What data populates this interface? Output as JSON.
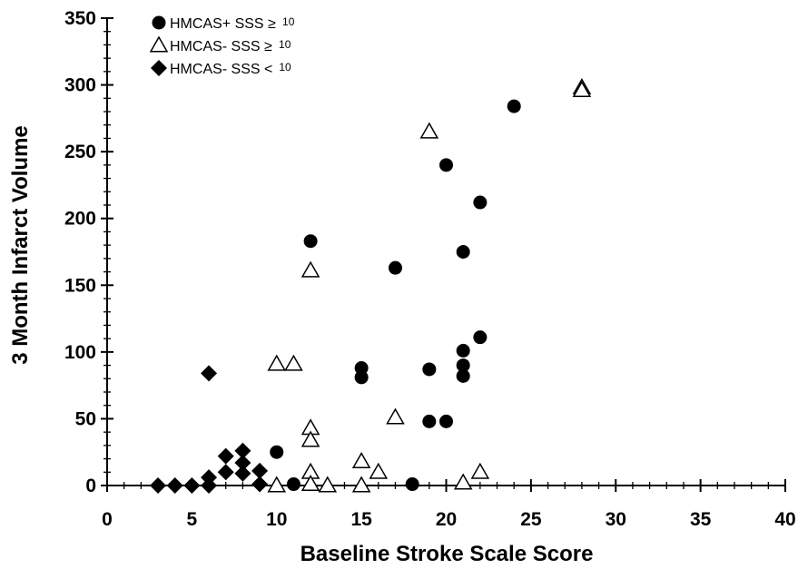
{
  "chart_data": {
    "type": "scatter",
    "title": "",
    "xlabel": "Baseline Stroke Scale Score",
    "ylabel": "3 Month Infarct Volume",
    "xlim": [
      0,
      40
    ],
    "ylim": [
      0,
      350
    ],
    "x_ticks": [
      0,
      5,
      10,
      15,
      20,
      25,
      30,
      35,
      40
    ],
    "y_ticks": [
      0,
      50,
      100,
      150,
      200,
      250,
      300,
      350
    ],
    "grid": false,
    "legend_position": "top-left",
    "series": [
      {
        "name": "HMCAS+ SSS ≥",
        "name_suffix": "10",
        "marker": "filled-circle",
        "color": "#000000",
        "points": [
          [
            10,
            25
          ],
          [
            11,
            1
          ],
          [
            12,
            183
          ],
          [
            15,
            88
          ],
          [
            15,
            81
          ],
          [
            17,
            163
          ],
          [
            18,
            1
          ],
          [
            19,
            87
          ],
          [
            19,
            48
          ],
          [
            20,
            240
          ],
          [
            20,
            48
          ],
          [
            21,
            175
          ],
          [
            21,
            101
          ],
          [
            21,
            90
          ],
          [
            21,
            82
          ],
          [
            22,
            212
          ],
          [
            22,
            111
          ],
          [
            24,
            284
          ]
        ]
      },
      {
        "name": "HMCAS- SSS ≥",
        "name_suffix": "10",
        "marker": "open-triangle",
        "color": "#000000",
        "points": [
          [
            10,
            91
          ],
          [
            10,
            0
          ],
          [
            11,
            91
          ],
          [
            12,
            161
          ],
          [
            12,
            43
          ],
          [
            12,
            34
          ],
          [
            12,
            10
          ],
          [
            12,
            1
          ],
          [
            13,
            0
          ],
          [
            15,
            18
          ],
          [
            15,
            0
          ],
          [
            16,
            10
          ],
          [
            17,
            51
          ],
          [
            19,
            265
          ],
          [
            21,
            2
          ],
          [
            22,
            10
          ],
          [
            28,
            298
          ],
          [
            28,
            296
          ]
        ]
      },
      {
        "name": "HMCAS- SSS <",
        "name_suffix": "10",
        "marker": "filled-diamond",
        "color": "#000000",
        "points": [
          [
            3,
            0
          ],
          [
            4,
            0
          ],
          [
            5,
            0
          ],
          [
            6,
            84
          ],
          [
            6,
            6
          ],
          [
            6,
            0
          ],
          [
            7,
            22
          ],
          [
            7,
            10
          ],
          [
            8,
            26
          ],
          [
            8,
            17
          ],
          [
            8,
            9
          ],
          [
            9,
            11
          ],
          [
            9,
            1
          ]
        ]
      }
    ]
  }
}
